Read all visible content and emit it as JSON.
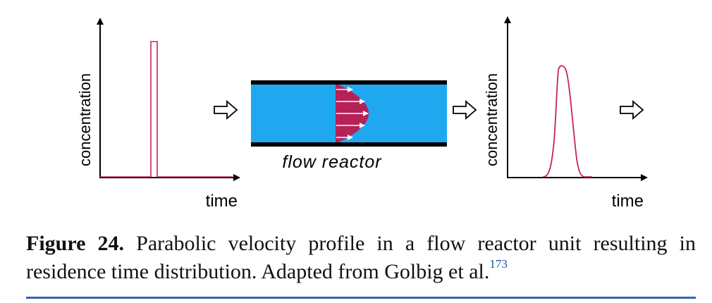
{
  "diagram": {
    "left_plot": {
      "ylabel": "concentration",
      "xlabel": "time",
      "signal": "rectangular-pulse"
    },
    "reactor": {
      "label": "flow reactor",
      "fluid_color": "#1fa8f0",
      "profile_color": "#b52257",
      "wall_color": "#000000"
    },
    "right_plot": {
      "ylabel": "concentration",
      "xlabel": "time",
      "signal": "broadened-peak"
    },
    "signal_color": "#c8235f",
    "arrow_icon": "hollow-right-arrow"
  },
  "caption": {
    "label": "Figure 24.",
    "text": " Parabolic velocity profile in a flow reactor unit resulting in residence time distribution. Adapted from Golbig et al.",
    "ref": "173",
    "rule_color": "#3465b5"
  }
}
